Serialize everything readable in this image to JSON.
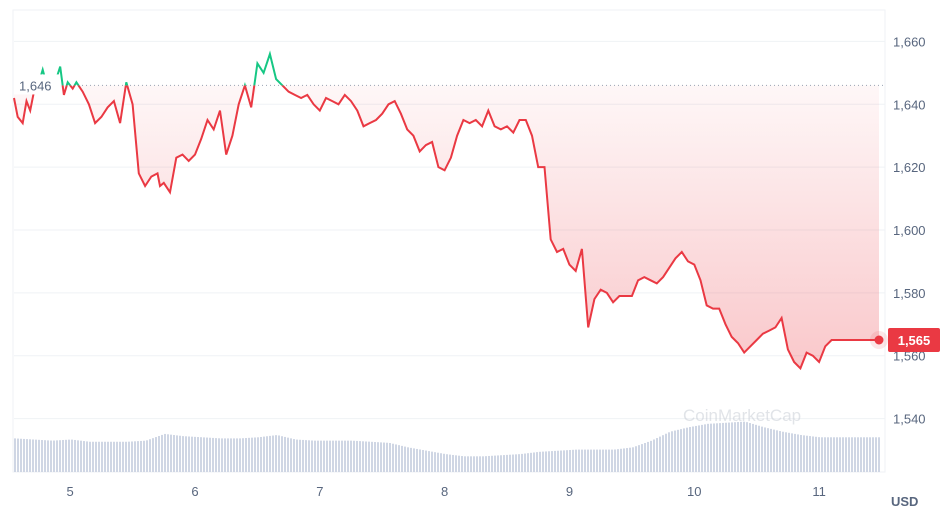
{
  "colors": {
    "down": "#ea3943",
    "up": "#16c784",
    "volume": "#cfd6e4",
    "grid": "#eff2f5",
    "axis_text": "#58667e"
  },
  "watermark": "CoinMarketCap",
  "chart_data": {
    "type": "line",
    "currency_label": "USD",
    "reference": {
      "value": 1646,
      "label": "1,646",
      "style": "dotted"
    },
    "current": {
      "value": 1565,
      "label": "1,565"
    },
    "x_range": [
      4.55,
      11.48
    ],
    "ylim": [
      1523,
      1670
    ],
    "y_ticks": [
      1540,
      1560,
      1580,
      1600,
      1620,
      1640,
      1660
    ],
    "y_tick_labels": [
      "1,540",
      "1,560",
      "1,580",
      "1,600",
      "1,620",
      "1,640",
      "1,660"
    ],
    "x_ticks": [
      5,
      6,
      7,
      8,
      9,
      10,
      11
    ],
    "x_tick_labels": [
      "5",
      "6",
      "7",
      "8",
      "9",
      "10",
      "11"
    ],
    "price": {
      "x": [
        4.55,
        4.58,
        4.62,
        4.65,
        4.68,
        4.72,
        4.75,
        4.78,
        4.82,
        4.85,
        4.88,
        4.92,
        4.95,
        4.98,
        5.02,
        5.05,
        5.1,
        5.15,
        5.2,
        5.25,
        5.3,
        5.35,
        5.4,
        5.45,
        5.5,
        5.55,
        5.6,
        5.65,
        5.7,
        5.72,
        5.75,
        5.8,
        5.85,
        5.9,
        5.95,
        6.0,
        6.05,
        6.1,
        6.15,
        6.2,
        6.25,
        6.3,
        6.35,
        6.4,
        6.45,
        6.5,
        6.55,
        6.6,
        6.65,
        6.7,
        6.75,
        6.8,
        6.85,
        6.9,
        6.95,
        7.0,
        7.05,
        7.1,
        7.15,
        7.2,
        7.25,
        7.3,
        7.35,
        7.4,
        7.45,
        7.5,
        7.55,
        7.6,
        7.65,
        7.7,
        7.75,
        7.8,
        7.85,
        7.9,
        7.95,
        8.0,
        8.05,
        8.1,
        8.15,
        8.2,
        8.25,
        8.3,
        8.35,
        8.4,
        8.45,
        8.5,
        8.55,
        8.6,
        8.65,
        8.7,
        8.75,
        8.8,
        8.85,
        8.9,
        8.95,
        9.0,
        9.05,
        9.1,
        9.15,
        9.2,
        9.25,
        9.3,
        9.35,
        9.4,
        9.45,
        9.5,
        9.55,
        9.6,
        9.65,
        9.7,
        9.75,
        9.8,
        9.85,
        9.9,
        9.95,
        10.0,
        10.05,
        10.1,
        10.15,
        10.2,
        10.25,
        10.3,
        10.35,
        10.4,
        10.45,
        10.5,
        10.55,
        10.6,
        10.65,
        10.7,
        10.75,
        10.8,
        10.85,
        10.9,
        10.95,
        11.0,
        11.05,
        11.1,
        11.15,
        11.2,
        11.25,
        11.3,
        11.35,
        11.4,
        11.45,
        11.48
      ],
      "y": [
        1642,
        1636,
        1634,
        1641,
        1638,
        1646,
        1647,
        1651,
        1645,
        1648,
        1647,
        1652,
        1643,
        1647,
        1645,
        1647,
        1644,
        1640,
        1634,
        1636,
        1639,
        1641,
        1634,
        1647,
        1640,
        1618,
        1614,
        1617,
        1618,
        1614,
        1615,
        1612,
        1623,
        1624,
        1622,
        1624,
        1629,
        1635,
        1632,
        1638,
        1624,
        1630,
        1640,
        1646,
        1639,
        1653,
        1650,
        1656,
        1648,
        1646,
        1644,
        1643,
        1642,
        1643,
        1640,
        1638,
        1642,
        1641,
        1640,
        1643,
        1641,
        1638,
        1633,
        1634,
        1635,
        1637,
        1640,
        1641,
        1637,
        1632,
        1630,
        1625,
        1627,
        1628,
        1620,
        1619,
        1623,
        1630,
        1635,
        1634,
        1635,
        1633,
        1638,
        1633,
        1632,
        1633,
        1631,
        1635,
        1635,
        1630,
        1620,
        1620,
        1597,
        1593,
        1594,
        1589,
        1587,
        1594,
        1569,
        1578,
        1581,
        1580,
        1577,
        1579,
        1579,
        1579,
        1584,
        1585,
        1584,
        1583,
        1585,
        1588,
        1591,
        1593,
        1590,
        1589,
        1584,
        1576,
        1575,
        1575,
        1570,
        1566,
        1564,
        1561,
        1563,
        1565,
        1567,
        1568,
        1569,
        1572,
        1562,
        1558,
        1556,
        1561,
        1560,
        1558,
        1563,
        1565,
        1565,
        1565,
        1565,
        1565,
        1565,
        1565,
        1565,
        1565
      ]
    },
    "volume": {
      "x": [
        4.55,
        4.7,
        4.85,
        5.0,
        5.15,
        5.3,
        5.45,
        5.6,
        5.75,
        5.9,
        6.05,
        6.2,
        6.35,
        6.5,
        6.65,
        6.8,
        6.95,
        7.1,
        7.25,
        7.4,
        7.55,
        7.7,
        7.85,
        8.0,
        8.15,
        8.3,
        8.45,
        8.6,
        8.75,
        8.9,
        9.05,
        9.2,
        9.35,
        9.5,
        9.65,
        9.8,
        9.95,
        10.1,
        10.25,
        10.4,
        10.55,
        10.7,
        10.85,
        11.0,
        11.15,
        11.3,
        11.48
      ],
      "v": [
        30,
        29,
        28,
        29,
        27,
        27,
        27,
        28,
        34,
        32,
        31,
        30,
        30,
        31,
        33,
        29,
        28,
        28,
        28,
        27,
        26,
        22,
        19,
        16,
        14,
        14,
        15,
        16,
        18,
        19,
        20,
        20,
        20,
        22,
        28,
        36,
        40,
        43,
        44,
        45,
        40,
        36,
        33,
        31,
        31,
        31,
        31
      ]
    }
  }
}
